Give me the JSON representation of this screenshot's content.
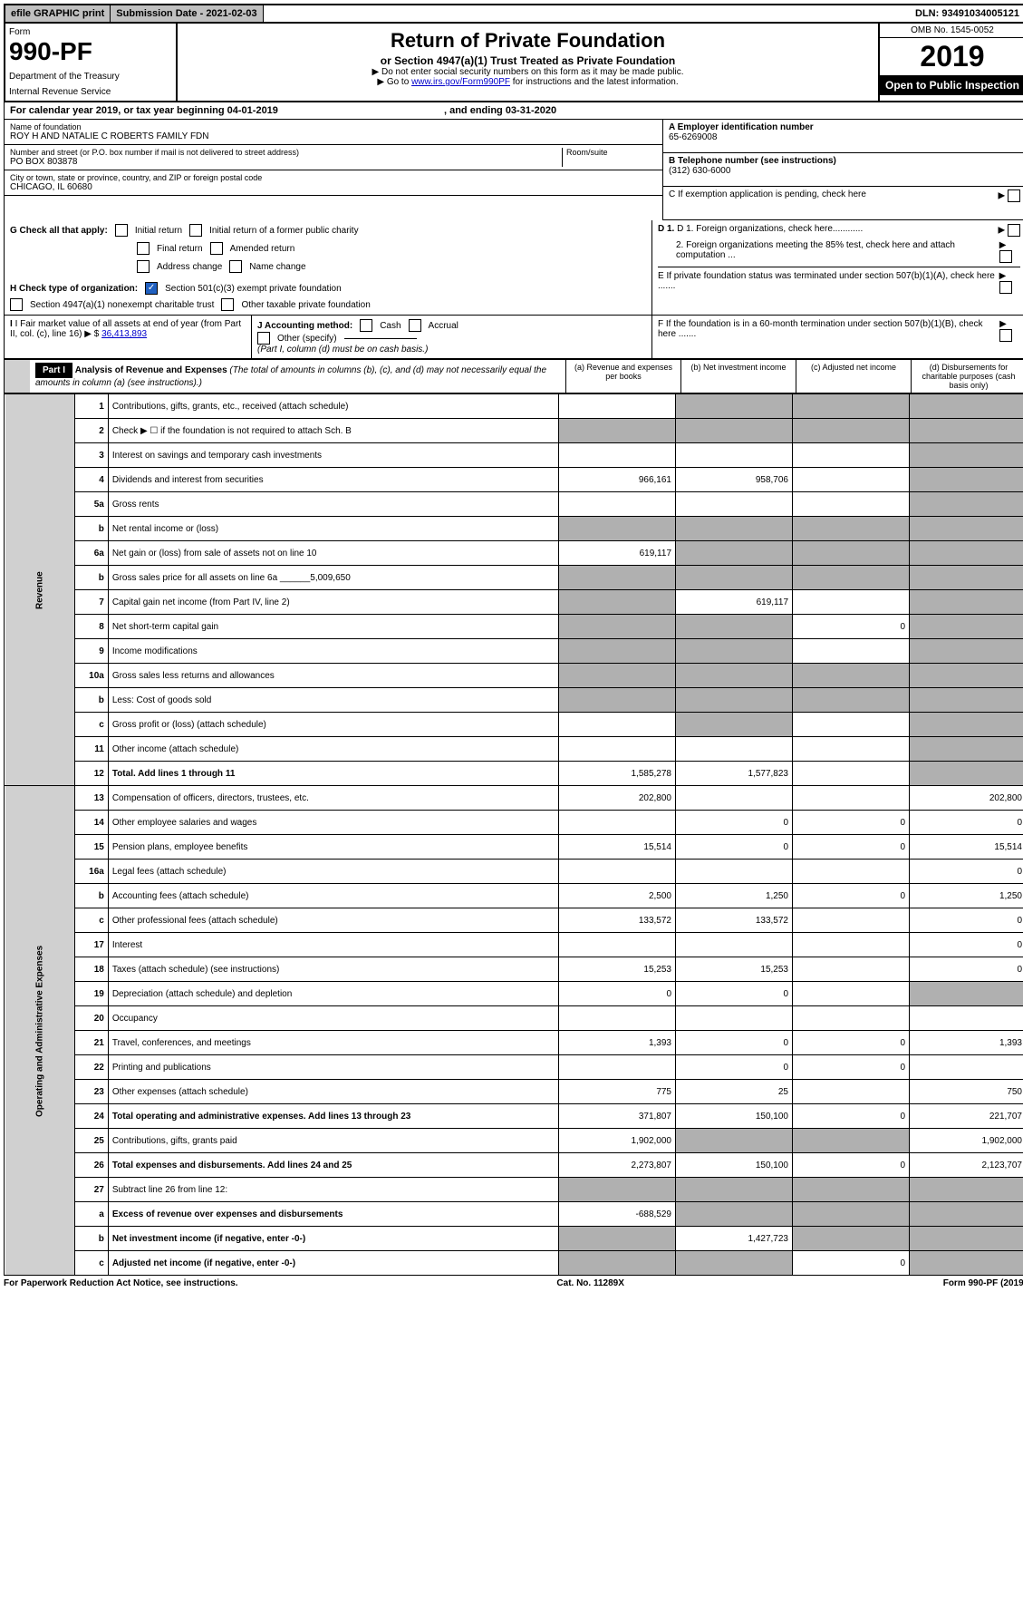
{
  "topbar": {
    "efile": "efile GRAPHIC print",
    "submission": "Submission Date - 2021-02-03",
    "dln": "DLN: 93491034005121"
  },
  "header": {
    "form_label": "Form",
    "form_number": "990-PF",
    "dept": "Department of the Treasury",
    "irs": "Internal Revenue Service",
    "title": "Return of Private Foundation",
    "subtitle": "or Section 4947(a)(1) Trust Treated as Private Foundation",
    "instr1": "▶ Do not enter social security numbers on this form as it may be made public.",
    "instr2": "▶ Go to ",
    "instr_link": "www.irs.gov/Form990PF",
    "instr3": " for instructions and the latest information.",
    "omb": "OMB No. 1545-0052",
    "year": "2019",
    "open": "Open to Public Inspection"
  },
  "calendar": {
    "text": "For calendar year 2019, or tax year beginning 04-01-2019",
    "ending": ", and ending 03-31-2020"
  },
  "foundation": {
    "name_label": "Name of foundation",
    "name": "ROY H AND NATALIE C ROBERTS FAMILY FDN",
    "addr_label": "Number and street (or P.O. box number if mail is not delivered to street address)",
    "addr": "PO BOX 803878",
    "room_label": "Room/suite",
    "city_label": "City or town, state or province, country, and ZIP or foreign postal code",
    "city": "CHICAGO, IL  60680"
  },
  "right_info": {
    "a_label": "A Employer identification number",
    "a_val": "65-6269008",
    "b_label": "B Telephone number (see instructions)",
    "b_val": "(312) 630-6000",
    "c_label": "C If exemption application is pending, check here",
    "d1": "D 1. Foreign organizations, check here............",
    "d2": "2. Foreign organizations meeting the 85% test, check here and attach computation ...",
    "e": "E If private foundation status was terminated under section 507(b)(1)(A), check here .......",
    "f": "F If the foundation is in a 60-month termination under section 507(b)(1)(B), check here ......."
  },
  "g_section": {
    "label": "G Check all that apply:",
    "opts": [
      "Initial return",
      "Initial return of a former public charity",
      "Final return",
      "Amended return",
      "Address change",
      "Name change"
    ]
  },
  "h_section": {
    "label": "H Check type of organization:",
    "opt1": "Section 501(c)(3) exempt private foundation",
    "opt2": "Section 4947(a)(1) nonexempt charitable trust",
    "opt3": "Other taxable private foundation"
  },
  "i_section": {
    "label": "I Fair market value of all assets at end of year (from Part II, col. (c), line 16)",
    "value": "36,413,893"
  },
  "j_section": {
    "label": "J Accounting method:",
    "cash": "Cash",
    "accrual": "Accrual",
    "other": "Other (specify)",
    "note": "(Part I, column (d) must be on cash basis.)"
  },
  "part1": {
    "label": "Part I",
    "title": "Analysis of Revenue and Expenses",
    "note": "(The total of amounts in columns (b), (c), and (d) may not necessarily equal the amounts in column (a) (see instructions).)",
    "col_a": "(a) Revenue and expenses per books",
    "col_b": "(b) Net investment income",
    "col_c": "(c) Adjusted net income",
    "col_d": "(d) Disbursements for charitable purposes (cash basis only)"
  },
  "vert": {
    "revenue": "Revenue",
    "expenses": "Operating and Administrative Expenses"
  },
  "rows": [
    {
      "n": "1",
      "desc": "Contributions, gifts, grants, etc., received (attach schedule)",
      "a": "",
      "b": "S",
      "c": "S",
      "d": "S"
    },
    {
      "n": "2",
      "desc": "Check ▶ ☐ if the foundation is not required to attach Sch. B",
      "a": "S",
      "b": "S",
      "c": "S",
      "d": "S",
      "html": true
    },
    {
      "n": "3",
      "desc": "Interest on savings and temporary cash investments",
      "a": "",
      "b": "",
      "c": "",
      "d": "S"
    },
    {
      "n": "4",
      "desc": "Dividends and interest from securities",
      "a": "966,161",
      "b": "958,706",
      "c": "",
      "d": "S"
    },
    {
      "n": "5a",
      "desc": "Gross rents",
      "a": "",
      "b": "",
      "c": "",
      "d": "S"
    },
    {
      "n": "b",
      "desc": "Net rental income or (loss)",
      "a": "S",
      "b": "S",
      "c": "S",
      "d": "S"
    },
    {
      "n": "6a",
      "desc": "Net gain or (loss) from sale of assets not on line 10",
      "a": "619,117",
      "b": "S",
      "c": "S",
      "d": "S"
    },
    {
      "n": "b",
      "desc": "Gross sales price for all assets on line 6a ______5,009,650",
      "a": "S",
      "b": "S",
      "c": "S",
      "d": "S"
    },
    {
      "n": "7",
      "desc": "Capital gain net income (from Part IV, line 2)",
      "a": "S",
      "b": "619,117",
      "c": "",
      "d": "S"
    },
    {
      "n": "8",
      "desc": "Net short-term capital gain",
      "a": "S",
      "b": "S",
      "c": "0",
      "d": "S"
    },
    {
      "n": "9",
      "desc": "Income modifications",
      "a": "S",
      "b": "S",
      "c": "",
      "d": "S"
    },
    {
      "n": "10a",
      "desc": "Gross sales less returns and allowances",
      "a": "S",
      "b": "S",
      "c": "S",
      "d": "S"
    },
    {
      "n": "b",
      "desc": "Less: Cost of goods sold",
      "a": "S",
      "b": "S",
      "c": "S",
      "d": "S"
    },
    {
      "n": "c",
      "desc": "Gross profit or (loss) (attach schedule)",
      "a": "",
      "b": "S",
      "c": "",
      "d": "S"
    },
    {
      "n": "11",
      "desc": "Other income (attach schedule)",
      "a": "",
      "b": "",
      "c": "",
      "d": "S"
    },
    {
      "n": "12",
      "desc": "Total. Add lines 1 through 11",
      "a": "1,585,278",
      "b": "1,577,823",
      "c": "",
      "d": "S",
      "bold": true
    },
    {
      "n": "13",
      "desc": "Compensation of officers, directors, trustees, etc.",
      "a": "202,800",
      "b": "",
      "c": "",
      "d": "202,800"
    },
    {
      "n": "14",
      "desc": "Other employee salaries and wages",
      "a": "",
      "b": "0",
      "c": "0",
      "d": "0"
    },
    {
      "n": "15",
      "desc": "Pension plans, employee benefits",
      "a": "15,514",
      "b": "0",
      "c": "0",
      "d": "15,514"
    },
    {
      "n": "16a",
      "desc": "Legal fees (attach schedule)",
      "a": "",
      "b": "",
      "c": "",
      "d": "0"
    },
    {
      "n": "b",
      "desc": "Accounting fees (attach schedule)",
      "a": "2,500",
      "b": "1,250",
      "c": "0",
      "d": "1,250"
    },
    {
      "n": "c",
      "desc": "Other professional fees (attach schedule)",
      "a": "133,572",
      "b": "133,572",
      "c": "",
      "d": "0"
    },
    {
      "n": "17",
      "desc": "Interest",
      "a": "",
      "b": "",
      "c": "",
      "d": "0"
    },
    {
      "n": "18",
      "desc": "Taxes (attach schedule) (see instructions)",
      "a": "15,253",
      "b": "15,253",
      "c": "",
      "d": "0"
    },
    {
      "n": "19",
      "desc": "Depreciation (attach schedule) and depletion",
      "a": "0",
      "b": "0",
      "c": "",
      "d": "S"
    },
    {
      "n": "20",
      "desc": "Occupancy",
      "a": "",
      "b": "",
      "c": "",
      "d": ""
    },
    {
      "n": "21",
      "desc": "Travel, conferences, and meetings",
      "a": "1,393",
      "b": "0",
      "c": "0",
      "d": "1,393"
    },
    {
      "n": "22",
      "desc": "Printing and publications",
      "a": "",
      "b": "0",
      "c": "0",
      "d": ""
    },
    {
      "n": "23",
      "desc": "Other expenses (attach schedule)",
      "a": "775",
      "b": "25",
      "c": "",
      "d": "750"
    },
    {
      "n": "24",
      "desc": "Total operating and administrative expenses. Add lines 13 through 23",
      "a": "371,807",
      "b": "150,100",
      "c": "0",
      "d": "221,707",
      "bold": true
    },
    {
      "n": "25",
      "desc": "Contributions, gifts, grants paid",
      "a": "1,902,000",
      "b": "S",
      "c": "S",
      "d": "1,902,000"
    },
    {
      "n": "26",
      "desc": "Total expenses and disbursements. Add lines 24 and 25",
      "a": "2,273,807",
      "b": "150,100",
      "c": "0",
      "d": "2,123,707",
      "bold": true
    },
    {
      "n": "27",
      "desc": "Subtract line 26 from line 12:",
      "a": "S",
      "b": "S",
      "c": "S",
      "d": "S"
    },
    {
      "n": "a",
      "desc": "Excess of revenue over expenses and disbursements",
      "a": "-688,529",
      "b": "S",
      "c": "S",
      "d": "S",
      "bold": true
    },
    {
      "n": "b",
      "desc": "Net investment income (if negative, enter -0-)",
      "a": "S",
      "b": "1,427,723",
      "c": "S",
      "d": "S",
      "bold": true
    },
    {
      "n": "c",
      "desc": "Adjusted net income (if negative, enter -0-)",
      "a": "S",
      "b": "S",
      "c": "0",
      "d": "S",
      "bold": true
    }
  ],
  "footer": {
    "left": "For Paperwork Reduction Act Notice, see instructions.",
    "center": "Cat. No. 11289X",
    "right": "Form 990-PF (2019)"
  }
}
